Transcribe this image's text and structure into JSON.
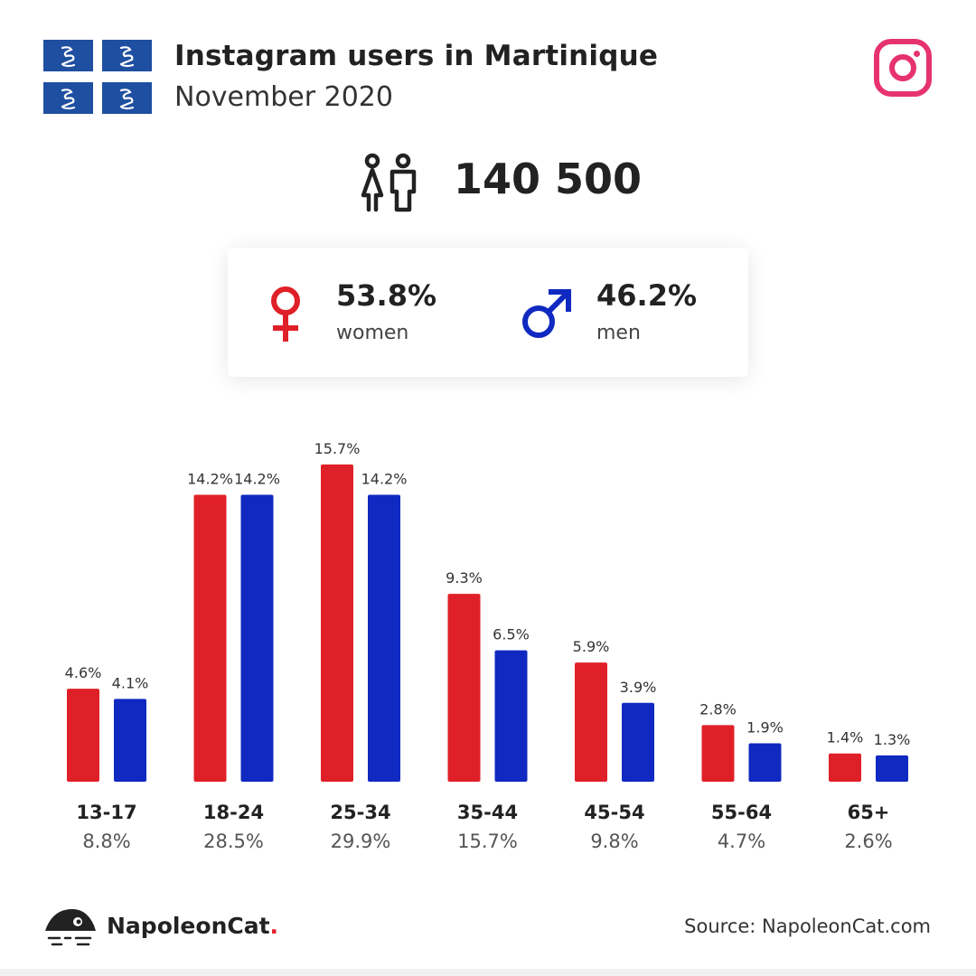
{
  "header": {
    "title": "Instagram users in Martinique",
    "subtitle": "November 2020"
  },
  "total": {
    "value": "140 500"
  },
  "gender": {
    "women_pct": "53.8%",
    "women_label": "women",
    "men_pct": "46.2%",
    "men_label": "men"
  },
  "footer": {
    "brand": "NapoleonCat",
    "brand_dot": ".",
    "source": "Source: NapoleonCat.com"
  },
  "colors": {
    "women": "#e02028",
    "men": "#1029c0",
    "instagram": "#e6336f",
    "flag_blue": "#1f4fa1"
  },
  "chart_data": {
    "type": "bar",
    "categories": [
      "13-17",
      "18-24",
      "25-34",
      "35-44",
      "45-54",
      "55-64",
      "65+"
    ],
    "category_totals": [
      "8.8%",
      "28.5%",
      "29.9%",
      "15.7%",
      "9.8%",
      "4.7%",
      "2.6%"
    ],
    "series": [
      {
        "name": "women",
        "values": [
          4.6,
          14.2,
          15.7,
          9.3,
          5.9,
          2.8,
          1.4
        ]
      },
      {
        "name": "men",
        "values": [
          4.1,
          14.2,
          14.2,
          6.5,
          3.9,
          1.9,
          1.3
        ]
      }
    ],
    "value_suffix": "%",
    "ylim": [
      0,
      15.7
    ],
    "grid": false,
    "legend": "none",
    "title": "",
    "xlabel": "",
    "ylabel": ""
  }
}
